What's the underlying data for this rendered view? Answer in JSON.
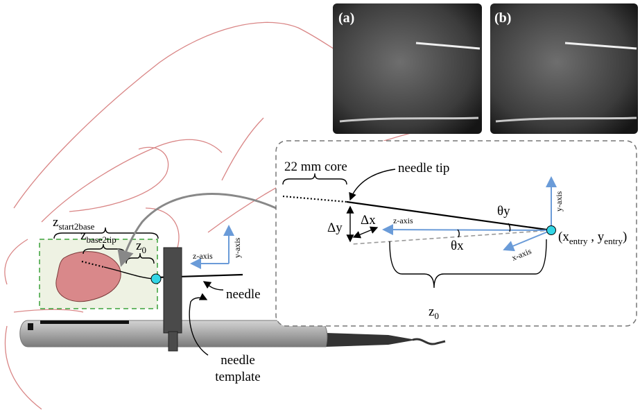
{
  "panels": [
    {
      "label": "(a)"
    },
    {
      "label": "(b)"
    }
  ],
  "left": {
    "z_start2base": {
      "base": "z",
      "sub": "start2base"
    },
    "z_base2tip": {
      "base": "z",
      "sub": "base2tip"
    },
    "z0": {
      "base": "z",
      "sub": "0"
    },
    "z_axis": "z-axis",
    "y_axis": "y-axis",
    "needle": "needle",
    "needle_template": [
      "needle",
      "template"
    ]
  },
  "inset": {
    "core": "22 mm core",
    "needle_tip": "needle tip",
    "theta_y": "θy",
    "y_axis": "y-axis",
    "delta_y": "Δy",
    "delta_x": "Δx",
    "z_axis": "z-axis",
    "theta_x": "θx",
    "x_axis": "x-axis",
    "entry": [
      "(x",
      "entry",
      " , y",
      "entry",
      ")"
    ],
    "z0": {
      "base": "z",
      "sub": "0"
    }
  }
}
